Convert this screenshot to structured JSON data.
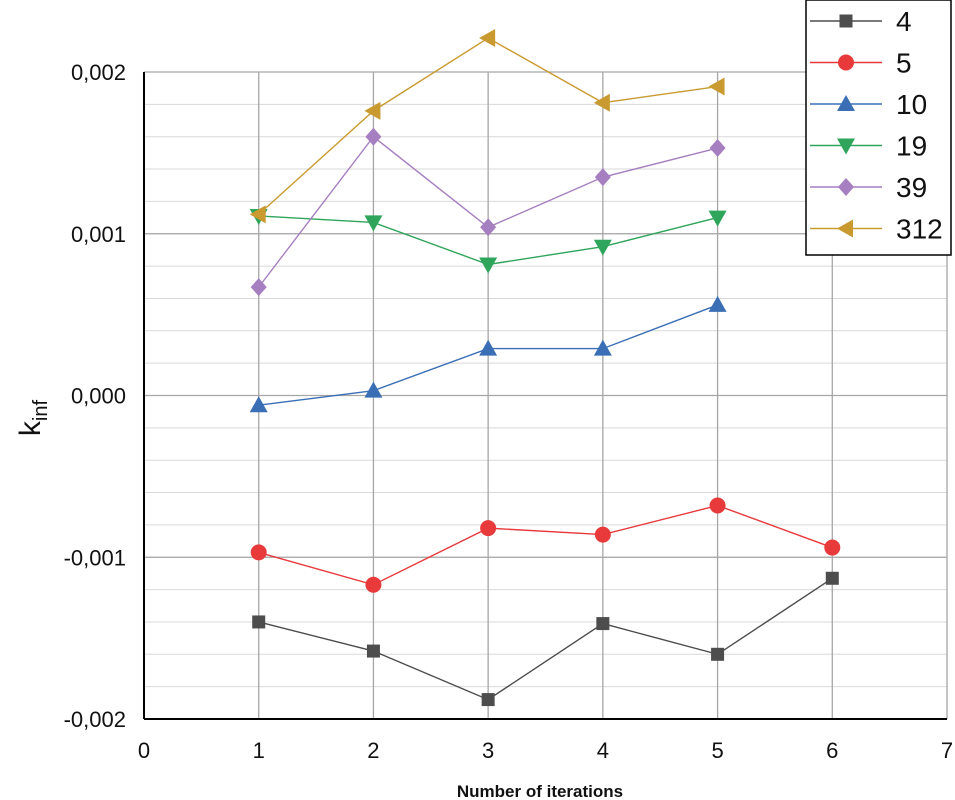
{
  "chart_data": {
    "type": "line",
    "xlabel": "Number of iterations",
    "ylabel": "k",
    "ylabel_sub": "inf",
    "xlim": [
      0,
      7
    ],
    "ylim": [
      -0.002,
      0.002
    ],
    "x_ticks": [
      0,
      1,
      2,
      3,
      4,
      5,
      6,
      7
    ],
    "x_tick_labels": [
      "0",
      "1",
      "2",
      "3",
      "4",
      "5",
      "6",
      "7"
    ],
    "y_ticks": [
      -0.002,
      -0.001,
      0.0,
      0.001,
      0.002
    ],
    "y_tick_labels": [
      "-0,002",
      "-0,001",
      "0,000",
      "0,001",
      "0,002"
    ],
    "grid": true,
    "legend_position": "top-right",
    "series": [
      {
        "name": "4",
        "color": "#4d4d4d",
        "marker": "square",
        "x": [
          1,
          2,
          3,
          4,
          5,
          6
        ],
        "y": [
          -0.0014,
          -0.00158,
          -0.00188,
          -0.00141,
          -0.0016,
          -0.00113
        ]
      },
      {
        "name": "5",
        "color": "#e8393b",
        "marker": "circle",
        "x": [
          1,
          2,
          3,
          4,
          5,
          6
        ],
        "y": [
          -0.00097,
          -0.00117,
          -0.00082,
          -0.00086,
          -0.00068,
          -0.00094
        ]
      },
      {
        "name": "10",
        "color": "#3a6fb5",
        "marker": "triangle-up",
        "x": [
          1,
          2,
          3,
          4,
          5
        ],
        "y": [
          -6e-05,
          3e-05,
          0.00029,
          0.00029,
          0.00056
        ]
      },
      {
        "name": "19",
        "color": "#2fa55c",
        "marker": "triangle-down",
        "x": [
          1,
          2,
          3,
          4,
          5
        ],
        "y": [
          0.00111,
          0.00107,
          0.00081,
          0.00092,
          0.0011
        ]
      },
      {
        "name": "39",
        "color": "#a57fc0",
        "marker": "diamond",
        "x": [
          1,
          2,
          3,
          4,
          5
        ],
        "y": [
          0.00067,
          0.0016,
          0.00104,
          0.00135,
          0.00153
        ]
      },
      {
        "name": "312",
        "color": "#c99a30",
        "marker": "triangle-left",
        "x": [
          1,
          2,
          3,
          4,
          5
        ],
        "y": [
          0.00112,
          0.00176,
          0.00221,
          0.00181,
          0.00191
        ]
      }
    ]
  }
}
